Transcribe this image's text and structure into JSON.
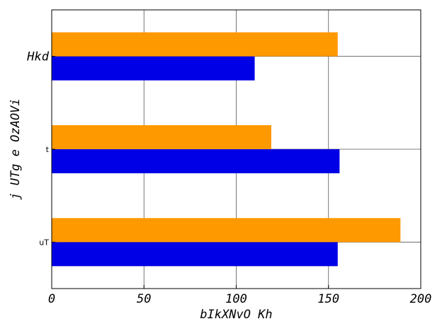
{
  "chart_data": {
    "type": "bar",
    "orientation": "horizontal",
    "title": "",
    "xlabel": "bIkXNvO Kh",
    "ylabel": "j UTg e OzAOVi",
    "categories": [
      "uT",
      "t",
      "Hkd"
    ],
    "series": [
      {
        "values": [
          155,
          156,
          110
        ],
        "color": "#0000e6"
      },
      {
        "values": [
          189,
          119,
          155
        ],
        "color": "#ff9900"
      }
    ],
    "xlim": [
      0,
      200
    ],
    "xticks": [
      0,
      50,
      100,
      150,
      200
    ],
    "xtick_labels": [
      "0",
      "50",
      "100",
      "150",
      "200"
    ],
    "grid": true
  }
}
